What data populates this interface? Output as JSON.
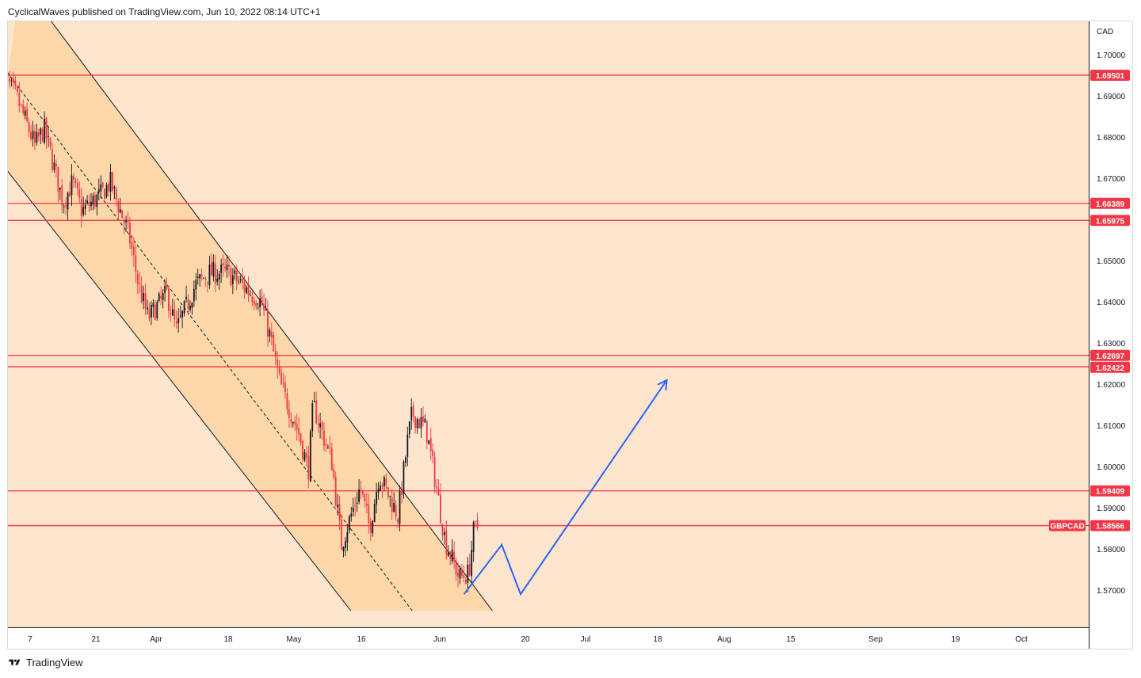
{
  "header": {
    "published_line": "CyclicalWaves published on TradingView.com, Jun 10, 2022 08:14 UTC+1"
  },
  "footer": {
    "brand": "TradingView"
  },
  "colors": {
    "plot_background": "#fde5cd",
    "channel_fill": "#fcd7aa",
    "level_line": "#f23645",
    "projection": "#2962ff",
    "candle_up": "#131722",
    "candle_down": "#f23645"
  },
  "chart_data": {
    "type": "candlestick",
    "symbol": "GBPCAD",
    "currency_label": "CAD",
    "y_ticks": [
      "1.70000",
      "1.69000",
      "1.68000",
      "1.67000",
      "1.66000",
      "1.65000",
      "1.64000",
      "1.63000",
      "1.62000",
      "1.61000",
      "1.60000",
      "1.59000",
      "1.58000",
      "1.57000"
    ],
    "x_ticks": [
      "7",
      "21",
      "Apr",
      "18",
      "May",
      "16",
      "Jun",
      "20",
      "Jul",
      "18",
      "Aug",
      "15",
      "Sep",
      "19",
      "Oct"
    ],
    "ylim": [
      1.5585,
      1.706
    ],
    "levels": [
      {
        "label": "1.69501",
        "value": 1.69501
      },
      {
        "label": "1.66389",
        "value": 1.66389
      },
      {
        "label": "1.65975",
        "value": 1.65975
      },
      {
        "label": "1.62697",
        "value": 1.62697
      },
      {
        "label": "1.62422",
        "value": 1.62422
      },
      {
        "label": "1.59409",
        "value": 1.59409
      }
    ],
    "current_price": {
      "label": "1.58566",
      "value": 1.58566,
      "symbol_tag": "GBPCAD"
    },
    "close_path": [
      [
        "2022-03-01",
        1.695
      ],
      [
        "2022-03-04",
        1.69
      ],
      [
        "2022-03-08",
        1.678
      ],
      [
        "2022-03-10",
        1.682
      ],
      [
        "2022-03-14",
        1.664
      ],
      [
        "2022-03-16",
        1.669
      ],
      [
        "2022-03-18",
        1.662
      ],
      [
        "2022-03-22",
        1.666
      ],
      [
        "2022-03-24",
        1.669
      ],
      [
        "2022-03-28",
        1.656
      ],
      [
        "2022-03-30",
        1.644
      ],
      [
        "2022-04-01",
        1.636
      ],
      [
        "2022-04-05",
        1.642
      ],
      [
        "2022-04-07",
        1.633
      ],
      [
        "2022-04-11",
        1.644
      ],
      [
        "2022-04-14",
        1.647
      ],
      [
        "2022-04-18",
        1.647
      ],
      [
        "2022-04-21",
        1.644
      ],
      [
        "2022-04-25",
        1.64
      ],
      [
        "2022-04-27",
        1.631
      ],
      [
        "2022-04-29",
        1.62
      ],
      [
        "2022-05-03",
        1.608
      ],
      [
        "2022-05-05",
        1.599
      ],
      [
        "2022-05-06",
        1.615
      ],
      [
        "2022-05-10",
        1.601
      ],
      [
        "2022-05-12",
        1.581
      ],
      [
        "2022-05-16",
        1.595
      ],
      [
        "2022-05-18",
        1.585
      ],
      [
        "2022-05-20",
        1.598
      ],
      [
        "2022-05-24",
        1.588
      ],
      [
        "2022-05-26",
        1.606
      ],
      [
        "2022-05-27",
        1.613
      ],
      [
        "2022-05-30",
        1.609
      ],
      [
        "2022-06-01",
        1.596
      ],
      [
        "2022-06-03",
        1.582
      ],
      [
        "2022-06-06",
        1.573
      ],
      [
        "2022-06-08",
        1.574
      ],
      [
        "2022-06-09",
        1.584
      ],
      [
        "2022-06-10",
        1.5857
      ]
    ],
    "channel": {
      "upper": [
        [
          "2022-03-05",
          1.718
        ],
        [
          "2022-06-13",
          1.565
        ]
      ],
      "lower": [
        [
          "2022-02-28",
          1.675
        ],
        [
          "2022-05-14",
          1.565
        ]
      ],
      "median": [
        [
          "2022-02-28",
          1.699
        ],
        [
          "2022-05-27",
          1.565
        ]
      ]
    },
    "projection": [
      [
        "2022-06-07",
        1.569
      ],
      [
        "2022-06-15",
        1.581
      ],
      [
        "2022-06-19",
        1.569
      ],
      [
        "2022-07-20",
        1.621
      ]
    ]
  }
}
